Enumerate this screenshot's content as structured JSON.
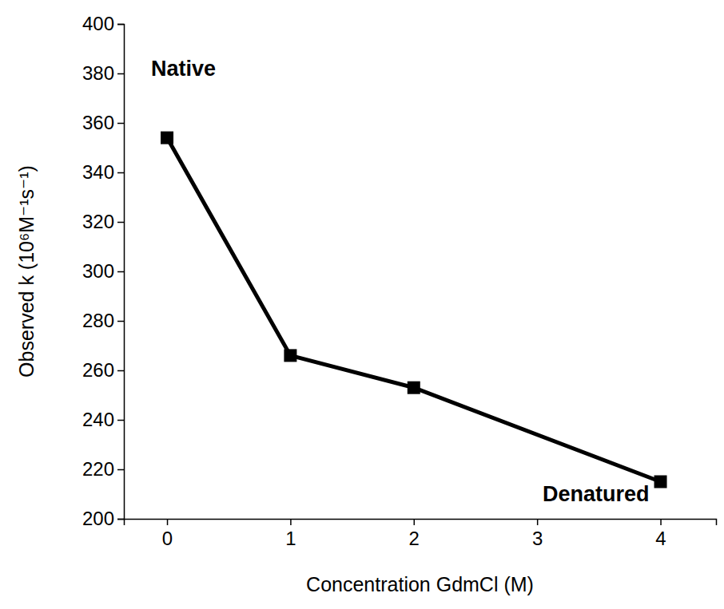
{
  "chart_data": {
    "type": "line",
    "x_label": "Concentration GdmCl (M)",
    "y_label": "Observed k (10⁶M⁻¹s⁻¹)",
    "x": [
      0,
      1,
      2,
      4
    ],
    "values": [
      354,
      266,
      253,
      215
    ],
    "color": "#000000",
    "marker": "square",
    "line_style": "solid",
    "xlim": [
      -0.35,
      4.45
    ],
    "xticks": [
      0,
      1,
      2,
      3,
      4
    ],
    "ylim": [
      200,
      400
    ],
    "yticks": [
      200,
      220,
      240,
      260,
      280,
      300,
      320,
      340,
      360,
      380,
      400
    ],
    "grid": false,
    "annotations": [
      "Native",
      "Denatured"
    ]
  }
}
